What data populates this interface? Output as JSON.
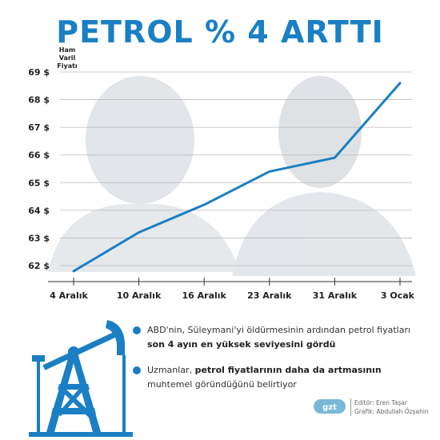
{
  "title": "PETROL % 4 ARTTI",
  "colors": {
    "accent": "#1a7fc4",
    "text": "#222222",
    "grid": "#bbbbbb"
  },
  "bullets": [
    {
      "parts": [
        {
          "text": "ABD'nin, Süleymani'yi öldürmesinin ardından petrol fiyatları ",
          "bold": false
        },
        {
          "text": "son 4 ayın en yüksek seviyesini gördü",
          "bold": true
        }
      ]
    },
    {
      "parts": [
        {
          "text": "Uzmanlar, ",
          "bold": false
        },
        {
          "text": "petrol fiyatlarının daha da artmasının",
          "bold": true
        },
        {
          "text": " muhtemel göründüğünü belirtiyor",
          "bold": false
        }
      ]
    }
  ],
  "credits": {
    "editor": "Editör: Eren Taşar",
    "graphic": "Grafik: Abdullah Özşahin"
  },
  "logo_text": "gzt",
  "icons": [
    "oil-pump-icon",
    "bullet-dot-icon",
    "gzt-logo-icon"
  ],
  "chart_data": {
    "type": "line",
    "ylabel": "Ham Varil Fiyatı",
    "xlabel": "",
    "categories": [
      "4 Aralık",
      "10 Aralık",
      "16 Aralık",
      "23 Aralık",
      "31 Aralık",
      "3 Ocak"
    ],
    "yticks": [
      "62 $",
      "63 $",
      "64 $",
      "65 $",
      "66 $",
      "67 $",
      "68 $",
      "69 $"
    ],
    "ylim": [
      62,
      69
    ],
    "grid": true,
    "series": [
      {
        "name": "",
        "points": [
          {
            "x": "4 Aralık",
            "y": 61.8
          },
          {
            "x": "10 Aralık",
            "y": 63.2
          },
          {
            "x": "16 Aralık",
            "y": 64.2
          },
          {
            "x": "23 Aralık",
            "y": 65.4
          },
          {
            "x": "31 Aralık",
            "y": 65.9
          },
          {
            "x": "3 Ocak",
            "y": 68.6
          }
        ]
      }
    ]
  }
}
